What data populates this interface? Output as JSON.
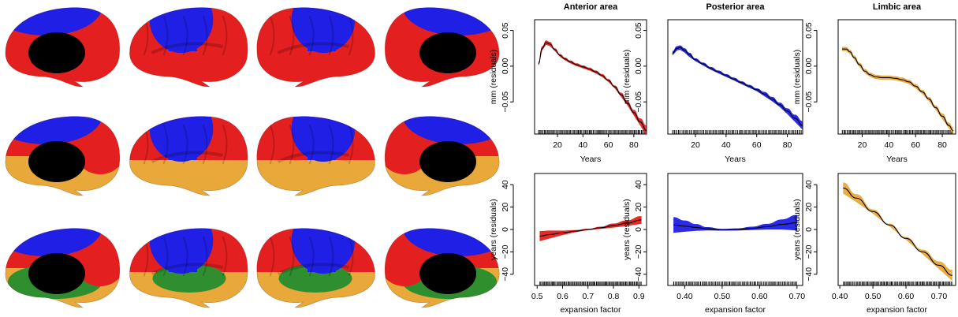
{
  "colors": {
    "anterior": "#e41f1f",
    "posterior": "#1f1fe6",
    "limbic": "#e8a93a",
    "green": "#2f8f2f",
    "fit_line": "#000000"
  },
  "brain_rows": [
    {
      "regions": [
        "blue",
        "red"
      ]
    },
    {
      "regions": [
        "blue",
        "red",
        "orange"
      ]
    },
    {
      "regions": [
        "blue",
        "red",
        "orange",
        "green"
      ]
    }
  ],
  "chart_data": [
    {
      "type": "line",
      "title": "Anterior area",
      "xlabel": "Years",
      "ylabel": "mm (residuals)",
      "xlim": [
        2,
        90
      ],
      "ylim": [
        -0.095,
        0.065
      ],
      "xticks": [
        20,
        40,
        60,
        80
      ],
      "yticks": [
        0.05,
        0.0,
        -0.05
      ],
      "ytick_labels": [
        "0.05",
        "0.00",
        "−0.05"
      ],
      "series": [
        {
          "color": "#e41f1f",
          "x": [
            5,
            8,
            11,
            14,
            18,
            22,
            26,
            30,
            35,
            40,
            45,
            50,
            55,
            60,
            65,
            70,
            75,
            80,
            85,
            90
          ],
          "y": [
            0.003,
            0.025,
            0.033,
            0.031,
            0.023,
            0.015,
            0.01,
            0.006,
            0.002,
            -0.001,
            -0.004,
            -0.008,
            -0.013,
            -0.02,
            -0.029,
            -0.04,
            -0.052,
            -0.065,
            -0.078,
            -0.09
          ]
        }
      ],
      "band": [
        0.003,
        0.003,
        0.003,
        0.003,
        0.002,
        0.002,
        0.002,
        0.002,
        0.002,
        0.002,
        0.002,
        0.002,
        0.002,
        0.002,
        0.002,
        0.003,
        0.003,
        0.004,
        0.005,
        0.007
      ]
    },
    {
      "type": "line",
      "title": "Posterior area",
      "xlabel": "Years",
      "ylabel": "mm (residuals)",
      "xlim": [
        2,
        90
      ],
      "ylim": [
        -0.095,
        0.065
      ],
      "xticks": [
        20,
        40,
        60,
        80
      ],
      "yticks": [
        0.05,
        0.0,
        -0.05
      ],
      "ytick_labels": [
        "0.05",
        "0.00",
        "−0.05"
      ],
      "series": [
        {
          "color": "#1f1fe6",
          "x": [
            5,
            8,
            10,
            13,
            16,
            20,
            25,
            30,
            35,
            40,
            45,
            50,
            55,
            60,
            65,
            70,
            75,
            80,
            85,
            90
          ],
          "y": [
            0.018,
            0.025,
            0.026,
            0.022,
            0.016,
            0.009,
            0.003,
            -0.003,
            -0.008,
            -0.013,
            -0.018,
            -0.023,
            -0.028,
            -0.033,
            -0.039,
            -0.046,
            -0.054,
            -0.063,
            -0.073,
            -0.083
          ]
        }
      ],
      "band": [
        0.003,
        0.003,
        0.003,
        0.003,
        0.003,
        0.002,
        0.002,
        0.002,
        0.002,
        0.002,
        0.002,
        0.002,
        0.002,
        0.002,
        0.003,
        0.003,
        0.003,
        0.004,
        0.005,
        0.006
      ]
    },
    {
      "type": "line",
      "title": "Limbic area",
      "xlabel": "Years",
      "ylabel": "mm (residuals)",
      "xlim": [
        2,
        90
      ],
      "ylim": [
        -0.095,
        0.065
      ],
      "xticks": [
        20,
        40,
        60,
        80
      ],
      "yticks": [
        0.05,
        0.0,
        -0.05
      ],
      "ytick_labels": [
        "0.05",
        "0.00",
        "−0.05"
      ],
      "series": [
        {
          "color": "#e8a93a",
          "x": [
            5,
            8,
            11,
            14,
            18,
            22,
            26,
            30,
            35,
            40,
            45,
            50,
            55,
            60,
            65,
            70,
            75,
            80,
            85,
            88
          ],
          "y": [
            0.024,
            0.024,
            0.02,
            0.012,
            0.002,
            -0.007,
            -0.012,
            -0.015,
            -0.016,
            -0.016,
            -0.017,
            -0.019,
            -0.022,
            -0.028,
            -0.036,
            -0.046,
            -0.058,
            -0.07,
            -0.083,
            -0.09
          ]
        }
      ],
      "band": [
        0.003,
        0.003,
        0.003,
        0.003,
        0.003,
        0.003,
        0.003,
        0.003,
        0.003,
        0.003,
        0.003,
        0.003,
        0.003,
        0.003,
        0.003,
        0.003,
        0.003,
        0.004,
        0.004,
        0.005
      ]
    },
    {
      "type": "line",
      "title": "",
      "xlabel": "expansion factor",
      "ylabel": "years (residuals)",
      "xlim": [
        0.49,
        0.93
      ],
      "ylim": [
        -50,
        50
      ],
      "xticks": [
        0.5,
        0.6,
        0.7,
        0.8,
        0.9
      ],
      "xtick_labels": [
        "0.5",
        "0.6",
        "0.7",
        "0.8",
        "0.9"
      ],
      "yticks": [
        40,
        20,
        0,
        -20,
        -40
      ],
      "ytick_labels": [
        "40",
        "20",
        "0",
        "−20",
        "−40"
      ],
      "series": [
        {
          "color": "#e41f1f",
          "x": [
            0.51,
            0.55,
            0.6,
            0.65,
            0.7,
            0.75,
            0.8,
            0.85,
            0.91
          ],
          "y": [
            -6,
            -4.5,
            -3,
            -1.5,
            0,
            1.5,
            3.5,
            5.5,
            8.5
          ]
        }
      ],
      "band": [
        4.5,
        3.5,
        2,
        1,
        0.6,
        1,
        1.8,
        2.5,
        3.5
      ]
    },
    {
      "type": "line",
      "title": "",
      "xlabel": "expansion factor",
      "ylabel": "years (residuals)",
      "xlim": [
        0.355,
        0.715
      ],
      "ylim": [
        -50,
        50
      ],
      "xticks": [
        0.4,
        0.5,
        0.6,
        0.7
      ],
      "xtick_labels": [
        "0.40",
        "0.50",
        "0.60",
        "0.70"
      ],
      "yticks": [
        40,
        20,
        0,
        -20,
        -40
      ],
      "ytick_labels": [
        "40",
        "20",
        "0",
        "−20",
        "−40"
      ],
      "series": [
        {
          "color": "#1f1fe6",
          "x": [
            0.37,
            0.4,
            0.43,
            0.46,
            0.5,
            0.54,
            0.58,
            0.62,
            0.66,
            0.7
          ],
          "y": [
            4,
            3,
            1.8,
            0.6,
            -0.3,
            0,
            1,
            2.5,
            4.5,
            6
          ]
        }
      ],
      "band": [
        7,
        5,
        3,
        1.5,
        0.8,
        1,
        1.5,
        2.5,
        4.5,
        7
      ]
    },
    {
      "type": "line",
      "title": "",
      "xlabel": "expansion factor",
      "ylabel": "years (residuals)",
      "xlim": [
        0.395,
        0.75
      ],
      "ylim": [
        -50,
        50
      ],
      "xticks": [
        0.4,
        0.5,
        0.6,
        0.7
      ],
      "xtick_labels": [
        "0.40",
        "0.50",
        "0.60",
        "0.70"
      ],
      "yticks": [
        40,
        20,
        0,
        -20,
        -40
      ],
      "ytick_labels": [
        "40",
        "20",
        "0",
        "−20",
        "−40"
      ],
      "series": [
        {
          "color": "#e8a93a",
          "x": [
            0.41,
            0.45,
            0.5,
            0.55,
            0.6,
            0.65,
            0.7,
            0.74
          ],
          "y": [
            37,
            28,
            16,
            4,
            -8,
            -20,
            -32,
            -41
          ]
        }
      ],
      "band": [
        5,
        3.5,
        2,
        1.2,
        1.2,
        2,
        3.5,
        5
      ]
    }
  ]
}
